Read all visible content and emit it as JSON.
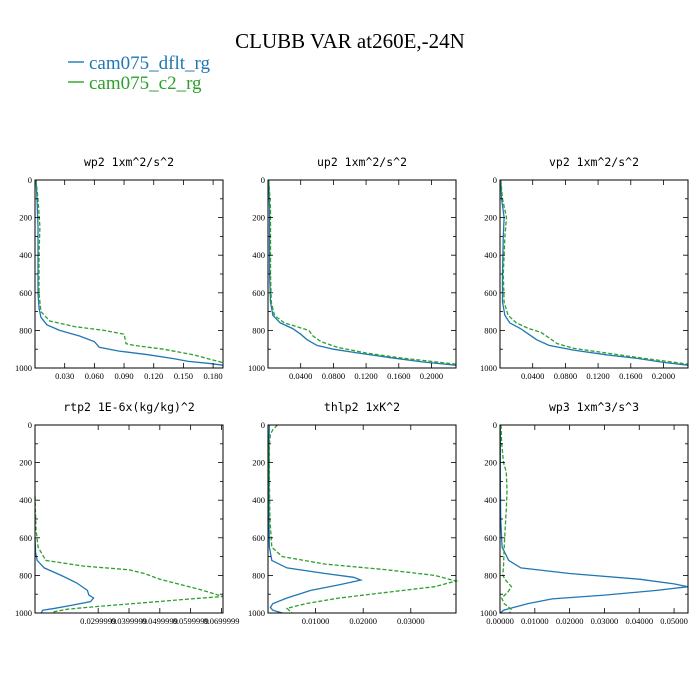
{
  "figure": {
    "title": "CLUBB VAR at260E,-24N",
    "legend": [
      {
        "label": "cam075_dflt_rg",
        "color": "#1f77b4",
        "dash": ""
      },
      {
        "label": "cam075_c2_rg",
        "color": "#2ca02c",
        "dash": "4,2"
      }
    ]
  },
  "chart_data": [
    {
      "type": "line",
      "title": "wp2  1xm^2/s^2",
      "xlim": [
        0,
        0.19
      ],
      "ylim": [
        1000,
        0
      ],
      "xticks": [
        "0.030",
        "0.060",
        "0.090",
        "0.120",
        "0.150",
        "0.180"
      ],
      "xtick_values": [
        0.03,
        0.06,
        0.09,
        0.12,
        0.15,
        0.18
      ],
      "yticks": [
        0,
        200,
        400,
        600,
        800,
        1000
      ],
      "series": [
        {
          "name": "cam075_dflt_rg",
          "color": "#1f77b4",
          "dash": "",
          "points": [
            [
              0.001,
              0
            ],
            [
              0.002,
              100
            ],
            [
              0.003,
              250
            ],
            [
              0.003,
              400
            ],
            [
              0.003,
              600
            ],
            [
              0.004,
              680
            ],
            [
              0.006,
              730
            ],
            [
              0.012,
              770
            ],
            [
              0.025,
              800
            ],
            [
              0.045,
              830
            ],
            [
              0.06,
              860
            ],
            [
              0.065,
              890
            ],
            [
              0.085,
              910
            ],
            [
              0.115,
              930
            ],
            [
              0.14,
              950
            ],
            [
              0.155,
              965
            ],
            [
              0.175,
              975
            ],
            [
              0.19,
              985
            ]
          ]
        },
        {
          "name": "cam075_c2_rg",
          "color": "#2ca02c",
          "dash": "4,2",
          "points": [
            [
              0.001,
              0
            ],
            [
              0.003,
              100
            ],
            [
              0.005,
              250
            ],
            [
              0.004,
              400
            ],
            [
              0.004,
              600
            ],
            [
              0.006,
              700
            ],
            [
              0.015,
              750
            ],
            [
              0.04,
              780
            ],
            [
              0.07,
              800
            ],
            [
              0.09,
              820
            ],
            [
              0.092,
              870
            ],
            [
              0.1,
              880
            ],
            [
              0.13,
              900
            ],
            [
              0.16,
              930
            ],
            [
              0.178,
              955
            ],
            [
              0.19,
              972
            ]
          ]
        }
      ]
    },
    {
      "type": "line",
      "title": "up2  1xm^2/s^2",
      "xlim": [
        0,
        0.23
      ],
      "ylim": [
        1000,
        0
      ],
      "xticks": [
        "0.0400",
        "0.0800",
        "0.1200",
        "0.1600",
        "0.2000"
      ],
      "xtick_values": [
        0.04,
        0.08,
        0.12,
        0.16,
        0.2
      ],
      "yticks": [
        0,
        200,
        400,
        600,
        800,
        1000
      ],
      "series": [
        {
          "name": "cam075_dflt_rg",
          "color": "#1f77b4",
          "dash": "",
          "points": [
            [
              0.001,
              0
            ],
            [
              0.002,
              150
            ],
            [
              0.002,
              300
            ],
            [
              0.002,
              500
            ],
            [
              0.003,
              650
            ],
            [
              0.006,
              720
            ],
            [
              0.015,
              760
            ],
            [
              0.03,
              790
            ],
            [
              0.04,
              820
            ],
            [
              0.048,
              850
            ],
            [
              0.06,
              880
            ],
            [
              0.08,
              900
            ],
            [
              0.11,
              920
            ],
            [
              0.15,
              945
            ],
            [
              0.19,
              968
            ],
            [
              0.23,
              985
            ]
          ]
        },
        {
          "name": "cam075_c2_rg",
          "color": "#2ca02c",
          "dash": "4,2",
          "points": [
            [
              0.001,
              0
            ],
            [
              0.003,
              150
            ],
            [
              0.003,
              300
            ],
            [
              0.003,
              500
            ],
            [
              0.004,
              650
            ],
            [
              0.008,
              720
            ],
            [
              0.02,
              760
            ],
            [
              0.035,
              780
            ],
            [
              0.05,
              800
            ],
            [
              0.055,
              830
            ],
            [
              0.065,
              860
            ],
            [
              0.085,
              890
            ],
            [
              0.12,
              920
            ],
            [
              0.16,
              945
            ],
            [
              0.2,
              965
            ],
            [
              0.23,
              980
            ]
          ]
        }
      ]
    },
    {
      "type": "line",
      "title": "vp2  1xm^2/s^2",
      "xlim": [
        0,
        0.23
      ],
      "ylim": [
        1000,
        0
      ],
      "xticks": [
        "0.0400",
        "0.0800",
        "0.1200",
        "0.1600",
        "0.2000"
      ],
      "xtick_values": [
        0.04,
        0.08,
        0.12,
        0.16,
        0.2
      ],
      "yticks": [
        0,
        200,
        400,
        600,
        800,
        1000
      ],
      "series": [
        {
          "name": "cam075_dflt_rg",
          "color": "#1f77b4",
          "dash": "",
          "points": [
            [
              0.001,
              0
            ],
            [
              0.002,
              100
            ],
            [
              0.005,
              200
            ],
            [
              0.004,
              300
            ],
            [
              0.003,
              500
            ],
            [
              0.003,
              650
            ],
            [
              0.006,
              720
            ],
            [
              0.012,
              760
            ],
            [
              0.025,
              790
            ],
            [
              0.035,
              820
            ],
            [
              0.045,
              850
            ],
            [
              0.06,
              880
            ],
            [
              0.09,
              905
            ],
            [
              0.13,
              930
            ],
            [
              0.17,
              950
            ],
            [
              0.2,
              970
            ],
            [
              0.23,
              985
            ]
          ]
        },
        {
          "name": "cam075_c2_rg",
          "color": "#2ca02c",
          "dash": "4,2",
          "points": [
            [
              0.001,
              0
            ],
            [
              0.003,
              100
            ],
            [
              0.008,
              200
            ],
            [
              0.006,
              300
            ],
            [
              0.004,
              500
            ],
            [
              0.005,
              650
            ],
            [
              0.01,
              720
            ],
            [
              0.02,
              760
            ],
            [
              0.035,
              790
            ],
            [
              0.05,
              810
            ],
            [
              0.06,
              840
            ],
            [
              0.07,
              870
            ],
            [
              0.09,
              895
            ],
            [
              0.13,
              920
            ],
            [
              0.17,
              945
            ],
            [
              0.21,
              968
            ],
            [
              0.23,
              980
            ]
          ]
        }
      ]
    },
    {
      "type": "line",
      "title": "rtp2  1E-6x(kg/kg)^2",
      "xlim": [
        0.0095,
        0.0705
      ],
      "ylim": [
        1000,
        0
      ],
      "xticks": [
        "0.0299999",
        "0.0399999",
        "0.0499999",
        "0.0599999",
        "0.0699999"
      ],
      "xtick_values": [
        0.0299999,
        0.0399999,
        0.0499999,
        0.0599999,
        0.0699999
      ],
      "yticks": [
        0,
        200,
        400,
        600,
        800,
        1000
      ],
      "series": [
        {
          "name": "cam075_dflt_rg",
          "color": "#1f77b4",
          "dash": "",
          "points": [
            [
              0.0095,
              600
            ],
            [
              0.0097,
              680
            ],
            [
              0.0102,
              720
            ],
            [
              0.0125,
              760
            ],
            [
              0.018,
              800
            ],
            [
              0.023,
              840
            ],
            [
              0.0265,
              880
            ],
            [
              0.027,
              905
            ],
            [
              0.0285,
              920
            ],
            [
              0.0275,
              940
            ],
            [
              0.021,
              960
            ],
            [
              0.016,
              975
            ],
            [
              0.012,
              985
            ],
            [
              0.0115,
              1000
            ]
          ]
        },
        {
          "name": "cam075_c2_rg",
          "color": "#2ca02c",
          "dash": "4,2",
          "points": [
            [
              0.0095,
              380
            ],
            [
              0.0098,
              550
            ],
            [
              0.0105,
              650
            ],
            [
              0.013,
              720
            ],
            [
              0.025,
              750
            ],
            [
              0.04,
              770
            ],
            [
              0.045,
              790
            ],
            [
              0.05,
              820
            ],
            [
              0.057,
              850
            ],
            [
              0.064,
              880
            ],
            [
              0.069,
              905
            ],
            [
              0.0705,
              912
            ],
            [
              0.06,
              925
            ],
            [
              0.045,
              945
            ],
            [
              0.03,
              965
            ],
            [
              0.02,
              980
            ],
            [
              0.015,
              995
            ]
          ]
        }
      ]
    },
    {
      "type": "line",
      "title": "thlp2  1xK^2",
      "xlim": [
        0,
        0.0395
      ],
      "ylim": [
        1000,
        0
      ],
      "xticks": [
        "0.01000",
        "0.02000",
        "0.03000"
      ],
      "xtick_values": [
        0.01,
        0.02,
        0.03
      ],
      "yticks": [
        0,
        200,
        400,
        600,
        800,
        1000
      ],
      "series": [
        {
          "name": "cam075_dflt_rg",
          "color": "#1f77b4",
          "dash": "",
          "points": [
            [
              0.0003,
              0
            ],
            [
              0.0002,
              100
            ],
            [
              0.0002,
              300
            ],
            [
              0.0002,
              500
            ],
            [
              0.0003,
              650
            ],
            [
              0.0008,
              720
            ],
            [
              0.004,
              760
            ],
            [
              0.012,
              790
            ],
            [
              0.018,
              810
            ],
            [
              0.0195,
              825
            ],
            [
              0.015,
              850
            ],
            [
              0.009,
              880
            ],
            [
              0.004,
              920
            ],
            [
              0.001,
              950
            ],
            [
              0.0005,
              970
            ],
            [
              0.001,
              985
            ],
            [
              0.003,
              1000
            ]
          ]
        },
        {
          "name": "cam075_c2_rg",
          "color": "#2ca02c",
          "dash": "4,2",
          "points": [
            [
              0.002,
              0
            ],
            [
              0.001,
              25
            ],
            [
              0.0005,
              50
            ],
            [
              0.0003,
              100
            ],
            [
              0.0003,
              300
            ],
            [
              0.0004,
              500
            ],
            [
              0.0008,
              650
            ],
            [
              0.003,
              700
            ],
            [
              0.012,
              740
            ],
            [
              0.025,
              770
            ],
            [
              0.035,
              800
            ],
            [
              0.0395,
              830
            ],
            [
              0.035,
              860
            ],
            [
              0.025,
              890
            ],
            [
              0.015,
              920
            ],
            [
              0.008,
              950
            ],
            [
              0.004,
              975
            ],
            [
              0.005,
              1000
            ]
          ]
        }
      ]
    },
    {
      "type": "line",
      "title": "wp3  1xm^3/s^3",
      "xlim": [
        0,
        0.054
      ],
      "ylim": [
        1000,
        0
      ],
      "xticks": [
        "0.00000",
        "0.01000",
        "0.02000",
        "0.03000",
        "0.04000",
        "0.05000"
      ],
      "xtick_values": [
        0,
        0.01,
        0.02,
        0.03,
        0.04,
        0.05
      ],
      "yticks": [
        0,
        200,
        400,
        600,
        800,
        1000
      ],
      "series": [
        {
          "name": "cam075_dflt_rg",
          "color": "#1f77b4",
          "dash": "",
          "points": [
            [
              0.0001,
              0
            ],
            [
              0.0001,
              300
            ],
            [
              0.0002,
              500
            ],
            [
              0.0006,
              650
            ],
            [
              0.0025,
              720
            ],
            [
              0.006,
              760
            ],
            [
              0.02,
              790
            ],
            [
              0.04,
              820
            ],
            [
              0.05,
              845
            ],
            [
              0.054,
              860
            ],
            [
              0.045,
              880
            ],
            [
              0.03,
              905
            ],
            [
              0.015,
              925
            ],
            [
              0.008,
              950
            ],
            [
              0.004,
              970
            ],
            [
              0.001,
              985
            ],
            [
              0.0001,
              1000
            ]
          ]
        },
        {
          "name": "cam075_c2_rg",
          "color": "#2ca02c",
          "dash": "4,2",
          "points": [
            [
              0.0003,
              0
            ],
            [
              0.0005,
              100
            ],
            [
              0.001,
              200
            ],
            [
              0.0018,
              250
            ],
            [
              0.002,
              350
            ],
            [
              0.0018,
              450
            ],
            [
              0.0015,
              550
            ],
            [
              0.0012,
              650
            ],
            [
              0.001,
              750
            ],
            [
              0.0008,
              800
            ],
            [
              0.0018,
              830
            ],
            [
              0.0033,
              860
            ],
            [
              0.0022,
              890
            ],
            [
              0.0005,
              920
            ],
            [
              0.0012,
              950
            ],
            [
              0.0032,
              980
            ],
            [
              0.0028,
              1000
            ]
          ]
        }
      ]
    }
  ]
}
